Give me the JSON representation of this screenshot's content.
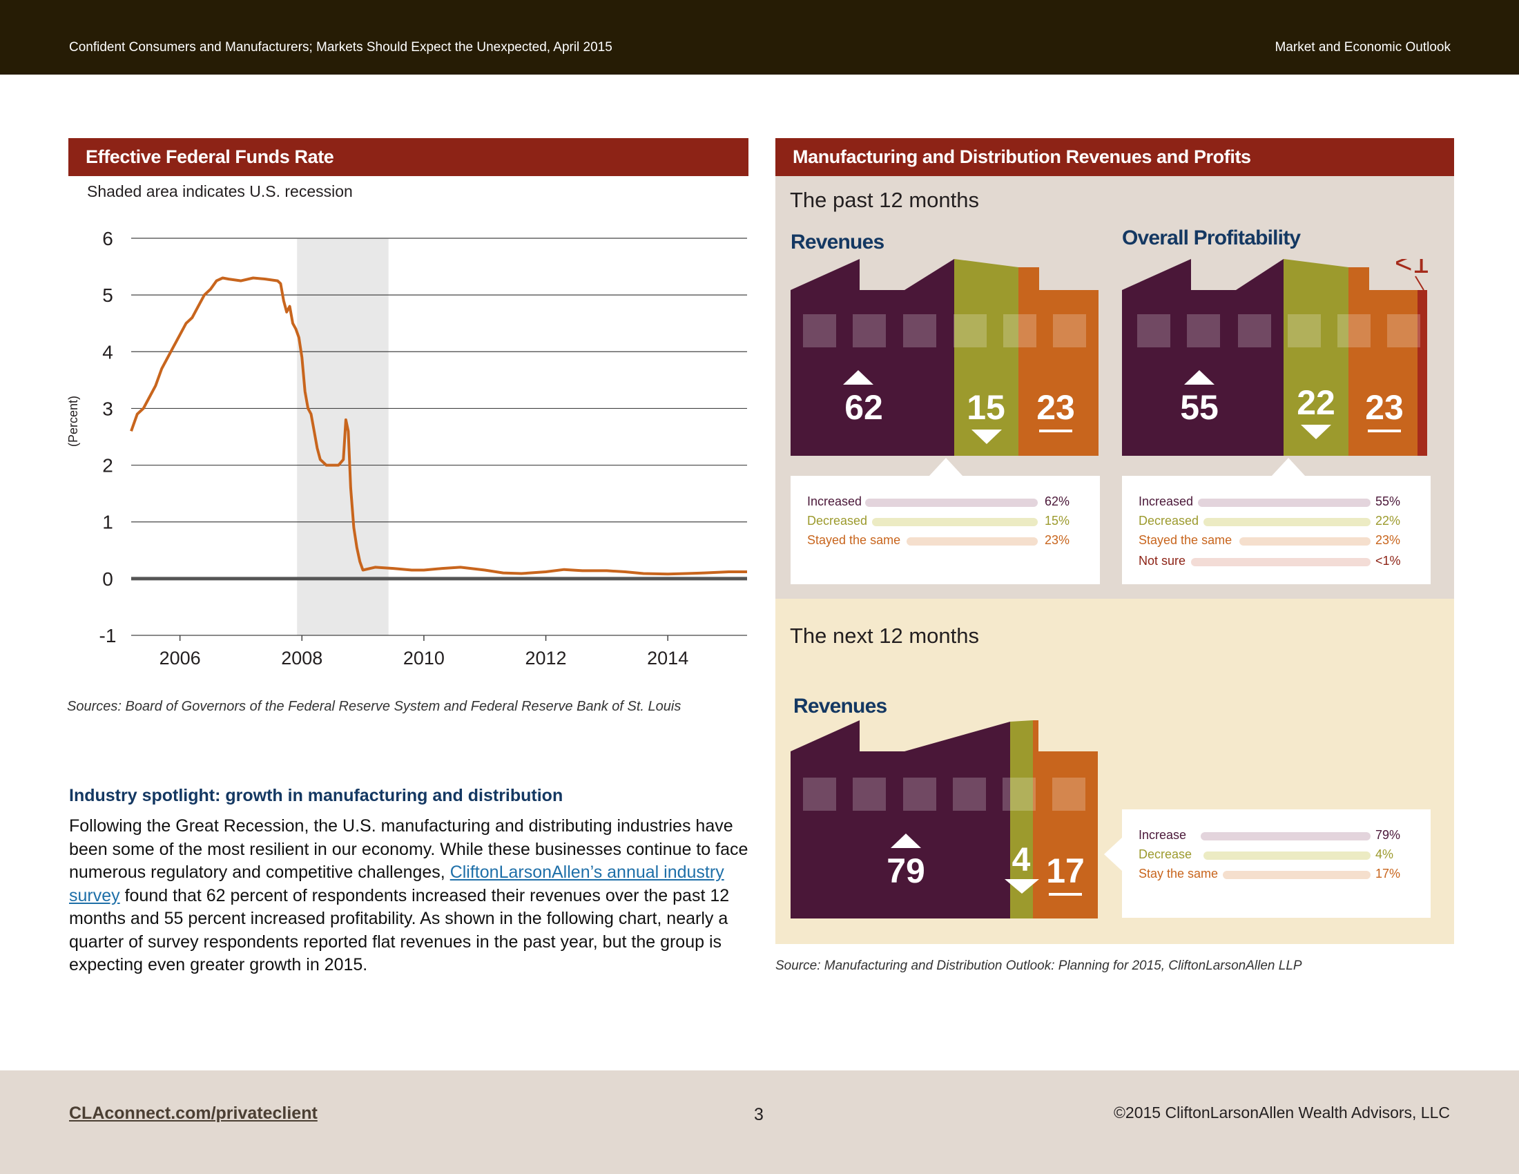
{
  "header": {
    "left_text": "Confident Consumers and Manufacturers; Markets Should Expect the Unexpected, April 2015",
    "right_text": "Market and Economic Outlook"
  },
  "ffr": {
    "title": "Effective Federal Funds Rate",
    "subtitle": "Shaded area indicates U.S. recession",
    "source": "Sources: Board of Governors of the Federal Reserve System and Federal Reserve Bank of St. Louis"
  },
  "chart_data": {
    "type": "line",
    "title": "Effective Federal Funds Rate",
    "subtitle": "Shaded area indicates U.S. recession",
    "xlabel": "",
    "ylabel": "(Percent)",
    "ylim": [
      -1,
      6
    ],
    "xlim": [
      2005.2,
      2015.3
    ],
    "y_ticks": [
      "-1",
      "0",
      "1",
      "2",
      "3",
      "4",
      "5",
      "6"
    ],
    "x_ticks": [
      "2006",
      "2008",
      "2010",
      "2012",
      "2014"
    ],
    "recession": [
      2007.92,
      2009.42
    ],
    "grid": true,
    "color": "#c8651d",
    "series": [
      {
        "x": [
          2005.2,
          2005.3,
          2005.4,
          2005.5,
          2005.6,
          2005.7,
          2005.8,
          2005.9,
          2006.0,
          2006.1,
          2006.2,
          2006.3,
          2006.4,
          2006.5,
          2006.6,
          2006.7,
          2006.8,
          2007.0,
          2007.2,
          2007.4,
          2007.6,
          2007.65,
          2007.7,
          2007.75,
          2007.8,
          2007.85,
          2007.9,
          2007.95,
          2008.0,
          2008.05,
          2008.1,
          2008.15,
          2008.2,
          2008.25,
          2008.3,
          2008.4,
          2008.5,
          2008.6,
          2008.68,
          2008.72,
          2008.76,
          2008.8,
          2008.85,
          2008.9,
          2008.95,
          2009.0,
          2009.2,
          2009.5,
          2009.8,
          2010.0,
          2010.3,
          2010.6,
          2011.0,
          2011.3,
          2011.6,
          2012.0,
          2012.3,
          2012.6,
          2013.0,
          2013.3,
          2013.6,
          2014.0,
          2014.3,
          2014.6,
          2015.0,
          2015.3
        ],
        "y": [
          2.6,
          2.9,
          3.0,
          3.2,
          3.4,
          3.7,
          3.9,
          4.1,
          4.3,
          4.5,
          4.6,
          4.8,
          5.0,
          5.1,
          5.25,
          5.3,
          5.28,
          5.25,
          5.3,
          5.28,
          5.25,
          5.2,
          4.9,
          4.7,
          4.8,
          4.5,
          4.4,
          4.25,
          3.9,
          3.3,
          3.0,
          2.9,
          2.6,
          2.3,
          2.1,
          2.0,
          2.0,
          2.0,
          2.1,
          2.8,
          2.6,
          1.6,
          0.9,
          0.55,
          0.3,
          0.15,
          0.2,
          0.18,
          0.15,
          0.15,
          0.18,
          0.2,
          0.15,
          0.1,
          0.09,
          0.12,
          0.16,
          0.14,
          0.14,
          0.12,
          0.09,
          0.08,
          0.09,
          0.1,
          0.12,
          0.12
        ]
      }
    ]
  },
  "spotlight": {
    "title": "Industry spotlight: growth in manufacturing and distribution",
    "body_before": "Following the Great Recession, the U.S. manufacturing and distributing industries have been some of the most resilient in our economy. While these businesses continue to face numerous regulatory and competitive challenges, ",
    "link_text": "CliftonLarsonAllen’s annual industry survey",
    "body_after": " found that 62 percent of respondents increased their revenues over the past 12 months and 55 percent increased profitability. As shown in the following chart, nearly a quarter of survey respondents reported flat revenues in the past year, but the group is expecting even greater growth in 2015."
  },
  "mfg": {
    "title": "Manufacturing and Distribution Revenues and Profits",
    "source": "Source: Manufacturing and Distribution Outlook: Planning for 2015, CliftonLarsonAllen LLP",
    "colors": {
      "increased": "#4a1738",
      "decreased": "#9c9a2d",
      "same": "#c8651d",
      "not_sure": "#a52b1b"
    },
    "past": {
      "title": "The past 12 months",
      "revenues": {
        "label": "Revenues",
        "increased": "62",
        "decreased": "15",
        "same": "23",
        "legend": [
          {
            "label": "Increased",
            "pct": "62%"
          },
          {
            "label": "Decreased",
            "pct": "15%"
          },
          {
            "label": "Stayed the same",
            "pct": "23%"
          }
        ]
      },
      "profitability": {
        "label": "Overall Profitability",
        "increased": "55",
        "decreased": "22",
        "same": "23",
        "not_sure": "<1",
        "legend": [
          {
            "label": "Increased",
            "pct": "55%"
          },
          {
            "label": "Decreased",
            "pct": "22%"
          },
          {
            "label": "Stayed the same",
            "pct": "23%"
          },
          {
            "label": "Not sure",
            "pct": "<1%"
          }
        ]
      }
    },
    "next": {
      "title": "The next 12 months",
      "revenues": {
        "label": "Revenues",
        "increase": "79",
        "decrease": "4",
        "same": "17",
        "legend": [
          {
            "label": "Increase",
            "pct": "79%"
          },
          {
            "label": "Decrease",
            "pct": "4%"
          },
          {
            "label": "Stay the same",
            "pct": "17%"
          }
        ]
      }
    }
  },
  "footer": {
    "link": "CLAconnect.com/privateclient",
    "page": "3",
    "copyright": "©2015 CliftonLarsonAllen Wealth Advisors, LLC"
  }
}
